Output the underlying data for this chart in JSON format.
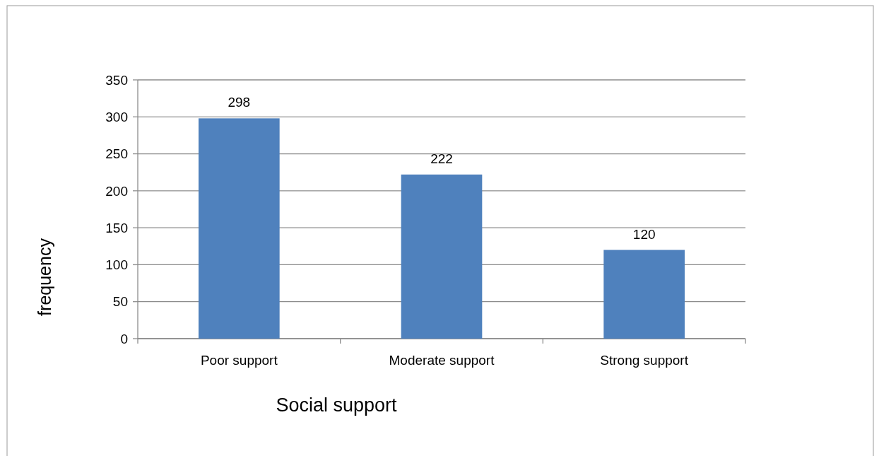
{
  "chart_data": {
    "type": "bar",
    "categories": [
      "Poor support",
      "Moderate support",
      "Strong support"
    ],
    "values": [
      298,
      222,
      120
    ],
    "color": "#4f81bd",
    "xlabel": "Social support",
    "ylabel": "frequency",
    "ylim": [
      0,
      350
    ],
    "yticks": [
      0,
      50,
      100,
      150,
      200,
      250,
      300,
      350
    ],
    "grid": "y",
    "data_labels": true
  }
}
